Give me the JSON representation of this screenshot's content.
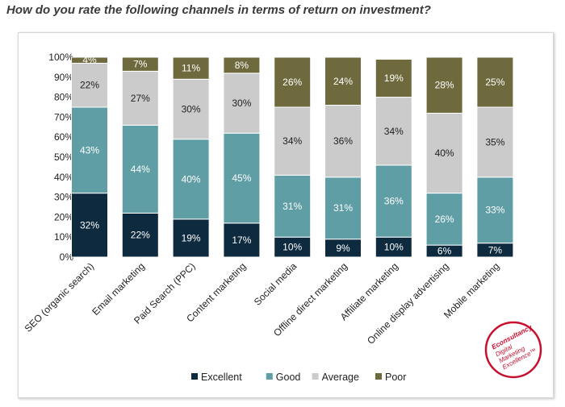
{
  "question": "How do you rate the following channels in terms of return on investment?",
  "chart_data": {
    "type": "bar",
    "stacked": true,
    "orientation": "vertical",
    "categories": [
      "SEO (organic search)",
      "Email marketing",
      "Paid Search (PPC)",
      "Content marketing",
      "Social media",
      "Offline direct marketing",
      "Affiliate marketing",
      "Online display advertising",
      "Mobile marketing"
    ],
    "series": [
      {
        "name": "Excellent",
        "color": "#0d2a3e",
        "label_color": "#ffffff",
        "values": [
          32,
          22,
          19,
          17,
          10,
          9,
          10,
          6,
          7
        ]
      },
      {
        "name": "Good",
        "color": "#5f9ea5",
        "label_color": "#ffffff",
        "values": [
          43,
          44,
          40,
          45,
          31,
          31,
          36,
          26,
          33
        ]
      },
      {
        "name": "Average",
        "color": "#cbcbcb",
        "label_color": "#222222",
        "values": [
          22,
          27,
          30,
          30,
          34,
          36,
          34,
          40,
          35
        ]
      },
      {
        "name": "Poor",
        "color": "#6e6a3e",
        "label_color": "#ffffff",
        "values": [
          4,
          7,
          11,
          8,
          26,
          24,
          19,
          28,
          25
        ]
      }
    ],
    "ylim": [
      0,
      100
    ],
    "yticks": [
      "0%",
      "10%",
      "20%",
      "30%",
      "40%",
      "50%",
      "60%",
      "70%",
      "80%",
      "90%",
      "100%"
    ],
    "legend_position": "bottom",
    "grid": false
  },
  "logo": {
    "brand": "Econsultancy",
    "line1": "Digital",
    "line2": "Marketing",
    "line3": "Excellence™",
    "color": "#c8102e"
  }
}
